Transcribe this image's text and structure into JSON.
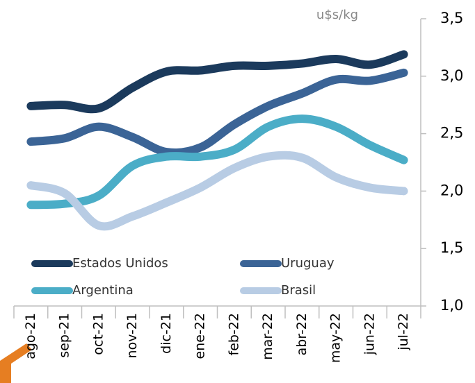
{
  "chart_data": {
    "type": "line",
    "y_label": "u$s/kg",
    "categories": [
      "ago-21",
      "sep-21",
      "oct-21",
      "nov-21",
      "dic-21",
      "ene-22",
      "feb-22",
      "mar-22",
      "abr-22",
      "may-22",
      "jun-22",
      "jul-22"
    ],
    "series": [
      {
        "name": "Estados Unidos",
        "color": "#1b3a5c",
        "values": [
          2.74,
          2.75,
          2.72,
          2.9,
          3.04,
          3.05,
          3.09,
          3.09,
          3.11,
          3.15,
          3.1,
          3.19
        ]
      },
      {
        "name": "Uruguay",
        "color": "#3b6496",
        "values": [
          2.43,
          2.46,
          2.56,
          2.47,
          2.34,
          2.38,
          2.58,
          2.74,
          2.85,
          2.97,
          2.96,
          3.03
        ]
      },
      {
        "name": "Argentina",
        "color": "#4badc7",
        "values": [
          1.88,
          1.89,
          1.96,
          2.22,
          2.3,
          2.3,
          2.36,
          2.56,
          2.63,
          2.56,
          2.4,
          2.27
        ]
      },
      {
        "name": "Brasil",
        "color": "#b8cce4",
        "values": [
          2.05,
          1.98,
          1.7,
          1.78,
          1.9,
          2.03,
          2.2,
          2.3,
          2.29,
          2.12,
          2.03,
          2.0
        ]
      }
    ],
    "ylim": [
      1.0,
      3.5
    ],
    "yticks": [
      {
        "value": 1.0,
        "label": "1,0"
      },
      {
        "value": 1.5,
        "label": "1,5"
      },
      {
        "value": 2.0,
        "label": "2,0"
      },
      {
        "value": 2.5,
        "label": "2,5"
      },
      {
        "value": 3.0,
        "label": "3,0"
      },
      {
        "value": 3.5,
        "label": "3,5"
      }
    ],
    "grid": false,
    "legend": "lower left"
  }
}
